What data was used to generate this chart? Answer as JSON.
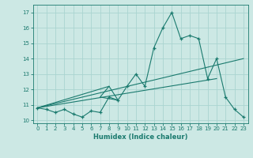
{
  "xlabel": "Humidex (Indice chaleur)",
  "background_color": "#cce8e4",
  "grid_color": "#aad4d0",
  "line_color": "#1a7a6e",
  "xlim": [
    -0.5,
    23.5
  ],
  "ylim": [
    9.8,
    17.5
  ],
  "xticks": [
    0,
    1,
    2,
    3,
    4,
    5,
    6,
    7,
    8,
    9,
    10,
    11,
    12,
    13,
    14,
    15,
    16,
    17,
    18,
    19,
    20,
    21,
    22,
    23
  ],
  "yticks": [
    10,
    11,
    12,
    13,
    14,
    15,
    16,
    17
  ],
  "line1_x": [
    0,
    1,
    2,
    3,
    4,
    5,
    6,
    7,
    8,
    9,
    10,
    11,
    12,
    13,
    14,
    15,
    16,
    17,
    18,
    19,
    20,
    21,
    22,
    23
  ],
  "line1_y": [
    10.8,
    10.7,
    10.5,
    10.7,
    10.4,
    10.2,
    10.6,
    10.5,
    11.5,
    11.3,
    12.2,
    13.0,
    12.2,
    14.7,
    16.0,
    17.0,
    15.3,
    15.5,
    15.3,
    12.7,
    14.0,
    11.5,
    10.7,
    10.2
  ],
  "line2_x": [
    0,
    23
  ],
  "line2_y": [
    10.8,
    14.0
  ],
  "line3_x": [
    0,
    20
  ],
  "line3_y": [
    10.8,
    12.7
  ],
  "line4_x": [
    0,
    8,
    7,
    9,
    8
  ],
  "line4_y": [
    10.8,
    12.2,
    11.5,
    11.3,
    12.2
  ]
}
